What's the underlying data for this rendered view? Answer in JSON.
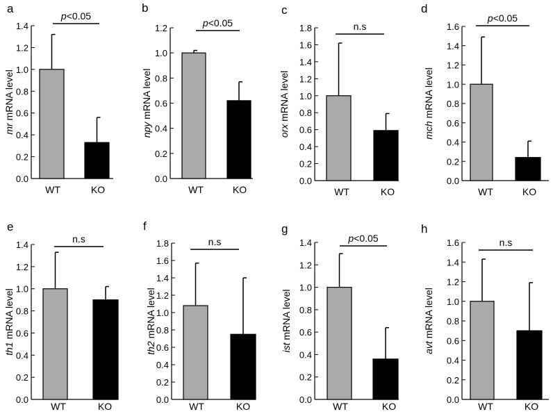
{
  "chart_data": [
    {
      "panel": "a",
      "type": "bar",
      "gene": "mr",
      "ylabel": "mRNA level",
      "categories": [
        "WT",
        "KO"
      ],
      "values": [
        1.0,
        0.33
      ],
      "errors": [
        0.32,
        0.23
      ],
      "ylim": [
        0,
        1.4
      ],
      "yticks": [
        "0.0",
        "0.2",
        "0.4",
        "0.6",
        "0.8",
        "1.0",
        "1.2",
        "1.4"
      ],
      "significance": {
        "p": "p",
        "rest": "<0.05"
      },
      "colors": [
        "#aaaaaa",
        "#000000"
      ]
    },
    {
      "panel": "b",
      "type": "bar",
      "gene": "npy",
      "ylabel": "mRNA level",
      "categories": [
        "WT",
        "KO"
      ],
      "values": [
        1.0,
        0.62
      ],
      "errors": [
        0.02,
        0.15
      ],
      "ylim": [
        0,
        1.2
      ],
      "yticks": [
        "0.0",
        "0.2",
        "0.4",
        "0.6",
        "0.8",
        "1.0",
        "1.2"
      ],
      "significance": {
        "p": "p",
        "rest": "<0.05"
      },
      "colors": [
        "#aaaaaa",
        "#000000"
      ]
    },
    {
      "panel": "c",
      "type": "bar",
      "gene": "orx",
      "ylabel": "mRNA level",
      "categories": [
        "WT",
        "KO"
      ],
      "values": [
        1.0,
        0.59
      ],
      "errors": [
        0.62,
        0.2
      ],
      "ylim": [
        0,
        1.8
      ],
      "yticks": [
        "0.0",
        "0.2",
        "0.4",
        "0.6",
        "0.8",
        "1.0",
        "1.2",
        "1.4",
        "1.6",
        "1.8"
      ],
      "significance": {
        "p": "",
        "rest": "n.s"
      },
      "colors": [
        "#aaaaaa",
        "#000000"
      ]
    },
    {
      "panel": "d",
      "type": "bar",
      "gene": "mch",
      "ylabel": "mRNA level",
      "categories": [
        "WT",
        "KO"
      ],
      "values": [
        1.0,
        0.24
      ],
      "errors": [
        0.49,
        0.17
      ],
      "ylim": [
        0,
        1.6
      ],
      "yticks": [
        "0.0",
        "0.2",
        "0.4",
        "0.6",
        "0.8",
        "1.0",
        "1.2",
        "1.4",
        "1.6"
      ],
      "significance": {
        "p": "p",
        "rest": "<0.05"
      },
      "colors": [
        "#aaaaaa",
        "#000000"
      ]
    },
    {
      "panel": "e",
      "type": "bar",
      "gene": "th1",
      "ylabel": "mRNA level",
      "categories": [
        "WT",
        "KO"
      ],
      "values": [
        1.0,
        0.9
      ],
      "errors": [
        0.33,
        0.12
      ],
      "ylim": [
        0,
        1.4
      ],
      "yticks": [
        "0.0",
        "0.2",
        "0.4",
        "0.6",
        "0.8",
        "1.0",
        "1.2",
        "1.4"
      ],
      "significance": {
        "p": "",
        "rest": "n.s"
      },
      "colors": [
        "#aaaaaa",
        "#000000"
      ]
    },
    {
      "panel": "f",
      "type": "bar",
      "gene": "th2",
      "ylabel": "mRNA level",
      "categories": [
        "WT",
        "KO"
      ],
      "values": [
        1.08,
        0.75
      ],
      "errors": [
        0.49,
        0.65
      ],
      "ylim": [
        0,
        1.8
      ],
      "yticks": [
        "0.0",
        "0.2",
        "0.4",
        "0.6",
        "0.8",
        "1.0",
        "1.2",
        "1.4",
        "1.6",
        "1.8"
      ],
      "significance": {
        "p": "",
        "rest": "n.s"
      },
      "colors": [
        "#aaaaaa",
        "#000000"
      ]
    },
    {
      "panel": "g",
      "type": "bar",
      "gene": "ist",
      "ylabel": "mRNA level",
      "categories": [
        "WT",
        "KO"
      ],
      "values": [
        1.0,
        0.36
      ],
      "errors": [
        0.3,
        0.28
      ],
      "ylim": [
        0,
        1.4
      ],
      "yticks": [
        "0.0",
        "0.2",
        "0.4",
        "0.6",
        "0.8",
        "1.0",
        "1.2",
        "1.4"
      ],
      "significance": {
        "p": "p",
        "rest": "<0.05"
      },
      "colors": [
        "#aaaaaa",
        "#000000"
      ]
    },
    {
      "panel": "h",
      "type": "bar",
      "gene": "avt",
      "ylabel": "mRNA level",
      "categories": [
        "WT",
        "KO"
      ],
      "values": [
        1.0,
        0.7
      ],
      "errors": [
        0.43,
        0.49
      ],
      "ylim": [
        0,
        1.6
      ],
      "yticks": [
        "0.0",
        "0.2",
        "0.4",
        "0.6",
        "0.8",
        "1.0",
        "1.2",
        "1.4",
        "1.6"
      ],
      "significance": {
        "p": "",
        "rest": "n.s"
      },
      "colors": [
        "#aaaaaa",
        "#000000"
      ]
    }
  ]
}
